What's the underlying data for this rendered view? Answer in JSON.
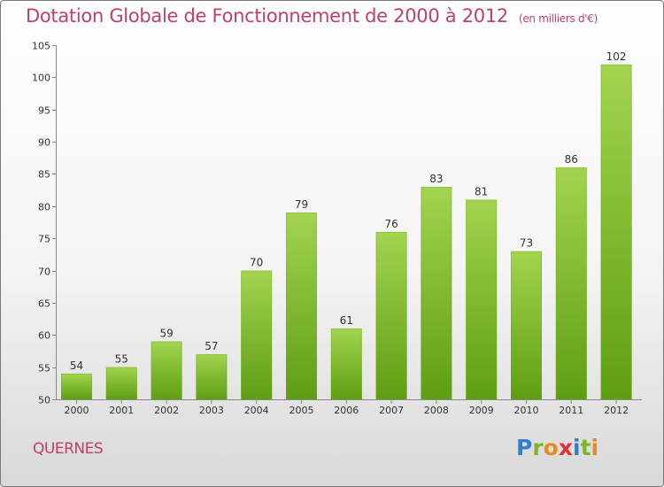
{
  "title": "Dotation Globale de Fonctionnement de 2000 à 2012",
  "subtitle": "(en milliers d'€)",
  "commune": "QUERNES",
  "logo": {
    "letters": [
      {
        "char": "P",
        "color": "#2f7fd1"
      },
      {
        "char": "r",
        "color": "#7cb826"
      },
      {
        "char": "o",
        "color": "#e98b1d"
      },
      {
        "char": "x",
        "color": "#e03131"
      },
      {
        "char": "i",
        "color": "#2f7fd1"
      },
      {
        "char": "t",
        "color": "#7cb826"
      },
      {
        "char": "i",
        "color": "#e98b1d"
      }
    ]
  },
  "colors": {
    "title": "#bf3f6c",
    "bar_light": "#a3d44f",
    "bar_dark": "#5e9e12",
    "axis": "#888888"
  },
  "chart_data": {
    "type": "bar",
    "categories": [
      "2000",
      "2001",
      "2002",
      "2003",
      "2004",
      "2005",
      "2006",
      "2007",
      "2008",
      "2009",
      "2010",
      "2011",
      "2012"
    ],
    "values": [
      54,
      55,
      59,
      57,
      70,
      79,
      61,
      76,
      83,
      81,
      73,
      86,
      102
    ],
    "yticks": [
      50,
      55,
      60,
      65,
      70,
      75,
      80,
      85,
      90,
      95,
      100,
      105
    ],
    "ylim": [
      50,
      105
    ],
    "grid": false
  }
}
